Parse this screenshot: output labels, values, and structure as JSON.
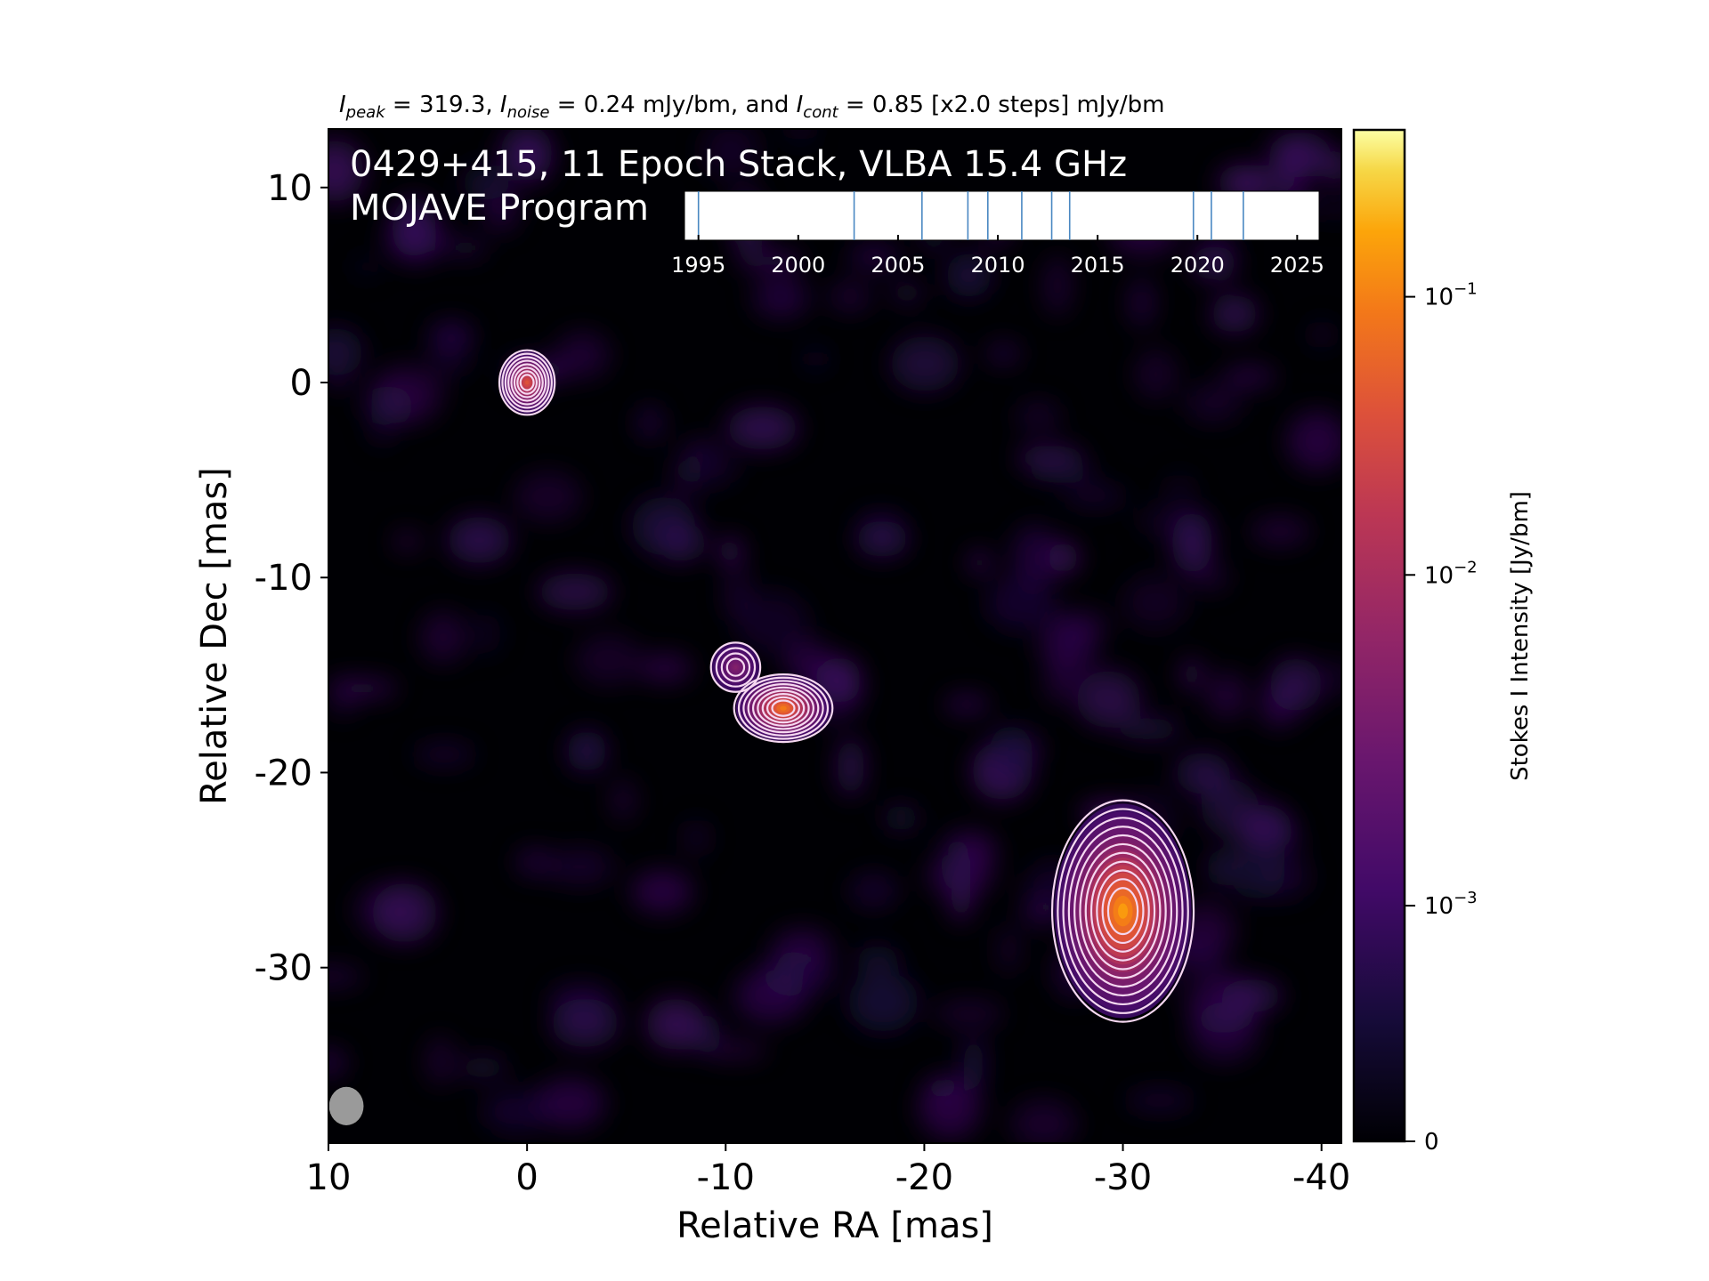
{
  "chart_data": {
    "type": "heatmap",
    "header": {
      "peak_label": "I",
      "peak_sub": "peak",
      "peak_value": " = 319.3, ",
      "noise_label": "I",
      "noise_sub": "noise",
      "noise_value": " = 0.24 mJy/bm, and ",
      "cont_label": "I",
      "cont_sub": "cont",
      "cont_value": " = 0.85 [x2.0 steps] mJy/bm"
    },
    "overlay_title_line1": "0429+415, 11 Epoch Stack, VLBA 15.4 GHz",
    "overlay_title_line2": "MOJAVE Program",
    "xlabel": "Relative RA [mas]",
    "ylabel": "Relative Dec [mas]",
    "xlim": [
      10,
      -41
    ],
    "ylim": [
      -39,
      13
    ],
    "xticks": [
      10,
      0,
      -10,
      -20,
      -30,
      -40
    ],
    "xtick_labels": [
      "10",
      "0",
      "-10",
      "-20",
      "-30",
      "-40"
    ],
    "yticks": [
      10,
      0,
      -10,
      -20,
      -30
    ],
    "ytick_labels": [
      "10",
      "0",
      "-10",
      "-20",
      "-30"
    ],
    "colorbar": {
      "label": "Stokes I Intensity [Jy/bm]",
      "colormap": "inferno",
      "ticks": [
        {
          "label_base": "10",
          "label_exp": "−1",
          "frac": 0.835
        },
        {
          "label_base": "10",
          "label_exp": "−2",
          "frac": 0.56
        },
        {
          "label_base": "10",
          "label_exp": "−3",
          "frac": 0.233
        },
        {
          "label_base": "0",
          "label_exp": "",
          "frac": 0.0
        }
      ]
    },
    "components": [
      {
        "name": "core",
        "ra": 0.0,
        "dec": 0.0,
        "peak_frac": 0.72,
        "sx": 0.9,
        "sy": 1.05,
        "levels": 8
      },
      {
        "name": "jet-knot-a",
        "ra": -10.5,
        "dec": -14.6,
        "peak_frac": 0.45,
        "sx": 0.8,
        "sy": 0.8,
        "levels": 4
      },
      {
        "name": "jet-knot-b",
        "ra": -12.9,
        "dec": -16.7,
        "peak_frac": 0.82,
        "sx": 1.6,
        "sy": 1.1,
        "levels": 9
      },
      {
        "name": "lobe",
        "ra": -30.0,
        "dec": -27.1,
        "peak_frac": 0.88,
        "sx": 2.3,
        "sy": 3.6,
        "levels": 11
      }
    ],
    "epoch_timeline": {
      "range": [
        1994.3,
        2026.1
      ],
      "tick_years": [
        1995,
        2000,
        2005,
        2010,
        2015,
        2020,
        2025
      ],
      "epochs": [
        1995.0,
        2002.8,
        2006.2,
        2008.5,
        2009.5,
        2011.2,
        2012.7,
        2013.6,
        2019.8,
        2020.7,
        2022.3
      ]
    },
    "beam": {
      "ra": 9.1,
      "dec": -37.1,
      "major_mas": 1.4,
      "minor_mas": 1.2
    }
  },
  "colors": {
    "axes_bg": "#000004",
    "contour": "#f5d7f0",
    "epoch_line": "#4a88c2",
    "beam": "#9a9a9a"
  }
}
